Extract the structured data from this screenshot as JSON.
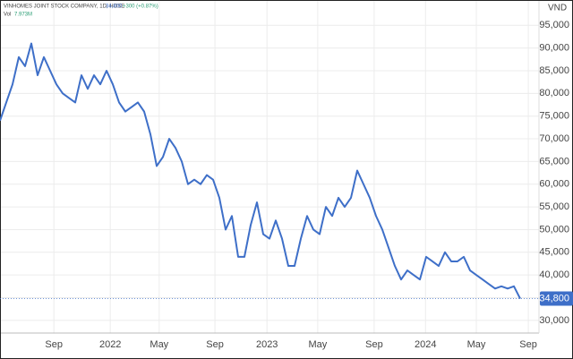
{
  "chart_data": {
    "type": "line",
    "header": "VINHOMES JOINT STOCK COMPANY, 1D, HOSE",
    "price": "34,800",
    "change": "+300 (+0.87%)",
    "volume_label": "Vol",
    "volume": "7.973M",
    "y_unit": "VND",
    "color": "#3e6fc8",
    "grid": true,
    "values": [
      74000,
      78000,
      82000,
      88000,
      86000,
      91000,
      84000,
      88000,
      85000,
      82000,
      80000,
      79000,
      78000,
      84000,
      81000,
      84000,
      82000,
      85000,
      82000,
      78000,
      76000,
      77000,
      78000,
      76000,
      71000,
      64000,
      66000,
      70000,
      68000,
      65000,
      60000,
      61000,
      60000,
      62000,
      61000,
      57000,
      50000,
      53000,
      44000,
      44000,
      51000,
      56000,
      49000,
      48000,
      52000,
      48000,
      42000,
      42000,
      48000,
      53000,
      50000,
      49000,
      55000,
      53000,
      57000,
      55000,
      57000,
      63000,
      60000,
      57000,
      53000,
      50000,
      46000,
      42000,
      39000,
      41000,
      40000,
      39000,
      44000,
      43000,
      42000,
      45000,
      43000,
      43000,
      44000,
      41000,
      40000,
      39000,
      38000,
      37000,
      37500,
      37000,
      37500,
      34800
    ],
    "xlim": [
      0,
      86
    ],
    "xticks": [
      {
        "value": 8.6,
        "label": "Sep"
      },
      {
        "value": 17.6,
        "label": "2022"
      },
      {
        "value": 25.4,
        "label": "May"
      },
      {
        "value": 34.3,
        "label": "Sep"
      },
      {
        "value": 42.6,
        "label": "2023"
      },
      {
        "value": 50.7,
        "label": "May"
      },
      {
        "value": 59.7,
        "label": "Sep"
      },
      {
        "value": 67.9,
        "label": "2024"
      },
      {
        "value": 76,
        "label": "May"
      },
      {
        "value": 84.3,
        "label": "Sep"
      }
    ],
    "ylim": [
      28000,
      99000
    ],
    "yticks": [
      {
        "value": 30000,
        "label": "30,000"
      },
      {
        "value": 35000,
        "label": "35,000"
      },
      {
        "value": 40000,
        "label": "40,000"
      },
      {
        "value": 45000,
        "label": "45,000"
      },
      {
        "value": 50000,
        "label": "50,000"
      },
      {
        "value": 55000,
        "label": "55,000"
      },
      {
        "value": 60000,
        "label": "60,000"
      },
      {
        "value": 65000,
        "label": "65,000"
      },
      {
        "value": 70000,
        "label": "70,000"
      },
      {
        "value": 75000,
        "label": "75,000"
      },
      {
        "value": 80000,
        "label": "80,000"
      },
      {
        "value": 85000,
        "label": "85,000"
      },
      {
        "value": 90000,
        "label": "90,000"
      },
      {
        "value": 95000,
        "label": "95,000"
      }
    ]
  }
}
